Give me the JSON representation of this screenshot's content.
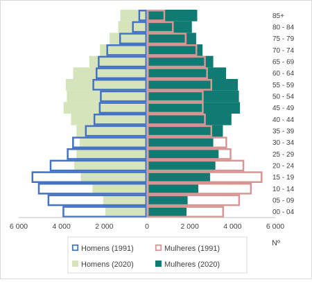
{
  "chart_data": {
    "type": "bar",
    "subtype": "population-pyramid",
    "orientation": "horizontal",
    "categories": [
      "00 - 04",
      "05 - 09",
      "10 - 14",
      "15 - 19",
      "20 - 24",
      "25 - 29",
      "30 - 34",
      "35 - 39",
      "40 - 44",
      "45 - 49",
      "50 - 54",
      "55 - 59",
      "60 - 64",
      "65 - 69",
      "70 - 74",
      "75 - 79",
      "80 - 84",
      "85+"
    ],
    "series": [
      {
        "name": "Homens (1991)",
        "side": "left",
        "style": "outline",
        "color": "#4472c4",
        "values": [
          3950,
          4650,
          5100,
          5400,
          4550,
          3750,
          3500,
          2900,
          2500,
          2250,
          2200,
          2550,
          2400,
          2300,
          1900,
          1300,
          700,
          400
        ]
      },
      {
        "name": "Mulheres (1991)",
        "side": "right",
        "style": "outline",
        "color": "#d99594",
        "values": [
          3600,
          4350,
          4900,
          5400,
          4550,
          3950,
          3750,
          3050,
          2750,
          2650,
          2650,
          3050,
          2850,
          2750,
          2350,
          1850,
          1250,
          850
        ]
      },
      {
        "name": "Homens (2020)",
        "side": "left",
        "style": "filled",
        "color": "#d6e4bc",
        "values": [
          1950,
          2050,
          2550,
          3100,
          3400,
          3300,
          3150,
          3300,
          3550,
          3900,
          3750,
          3800,
          3450,
          2700,
          2200,
          1750,
          1350,
          1250
        ]
      },
      {
        "name": "Mulheres (2020)",
        "side": "right",
        "style": "filled",
        "color": "#0f7b72",
        "values": [
          1850,
          1900,
          2400,
          2950,
          3200,
          3350,
          3100,
          3550,
          3950,
          4350,
          4300,
          4250,
          3700,
          3100,
          2600,
          2300,
          2100,
          2350
        ]
      }
    ],
    "xlim": [
      -6000,
      6000
    ],
    "xticks": [
      -6000,
      -4000,
      -2000,
      0,
      2000,
      4000,
      6000
    ],
    "xtick_labels": [
      "6 000",
      "4 000",
      "2 000",
      "0",
      "2 000",
      "4 000",
      "6 000"
    ],
    "xlabel": "Nº",
    "ylabel": "",
    "grid": false,
    "legend": {
      "position": "bottom",
      "columns": 2,
      "order": [
        "Homens (1991)",
        "Mulheres (1991)",
        "Homens (2020)",
        "Mulheres (2020)"
      ]
    }
  }
}
